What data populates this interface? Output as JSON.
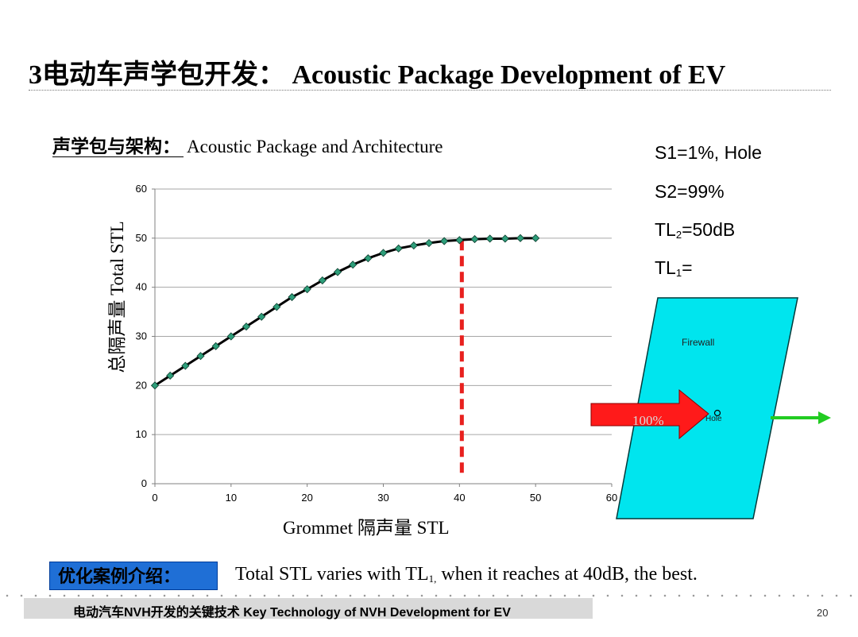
{
  "slide": {
    "title": "3电动车声学包开发： Acoustic Package Development of  EV",
    "subtitle_cn": "声学包与架构：",
    "subtitle_en": "Acoustic Package and Architecture",
    "params": {
      "s1": "S1=1%, Hole",
      "s2": "S2=99%",
      "tl2_prefix": "TL",
      "tl2_sub": "2",
      "tl2_suffix": "=50dB",
      "tl1_prefix": "TL",
      "tl1_sub": "1",
      "tl1_suffix": "="
    },
    "summary_tag": "优化案例介绍：",
    "summary_pre": "Total STL varies with TL",
    "summary_sub": "1,",
    "summary_post": " when it reaches at 40dB,  the best.",
    "footer": "电动汽车NVH开发的关键技术  Key Technology of NVH Development for EV",
    "page_number": "20"
  },
  "diagram": {
    "firewall_label": "Firewall",
    "hole_label": "Hole",
    "arrow_label": "100%",
    "colors": {
      "panel": "#00e5ee",
      "arrow_in": "#ff0000",
      "arrow_out": "#22cc22"
    }
  },
  "chart_data": {
    "type": "line",
    "xlabel": "Grommet  隔声量  STL",
    "ylabel": "总隔声量  Total STL",
    "xlim": [
      0,
      60
    ],
    "ylim": [
      0,
      60
    ],
    "xticks": [
      0,
      10,
      20,
      30,
      40,
      50,
      60
    ],
    "yticks": [
      0,
      10,
      20,
      30,
      40,
      50,
      60
    ],
    "grid": "horizontal",
    "series": [
      {
        "x": [
          0,
          2,
          4,
          6,
          8,
          10,
          12,
          14,
          16,
          18,
          20,
          22,
          24,
          26,
          28,
          30,
          32,
          34,
          36,
          38,
          40,
          42,
          44,
          46,
          48,
          50
        ],
        "y": [
          20,
          22,
          24,
          26,
          28,
          30,
          32,
          34,
          36,
          38,
          39.6,
          41.4,
          43.1,
          44.6,
          45.9,
          47,
          47.9,
          48.5,
          49,
          49.4,
          49.6,
          49.8,
          49.9,
          49.9,
          50,
          50
        ]
      }
    ],
    "marker_line_x": 40,
    "colors": {
      "line": "#000000",
      "marker": "#2e9e7a",
      "marker_line": "#e8201e",
      "grid": "#a6a6a6"
    }
  }
}
